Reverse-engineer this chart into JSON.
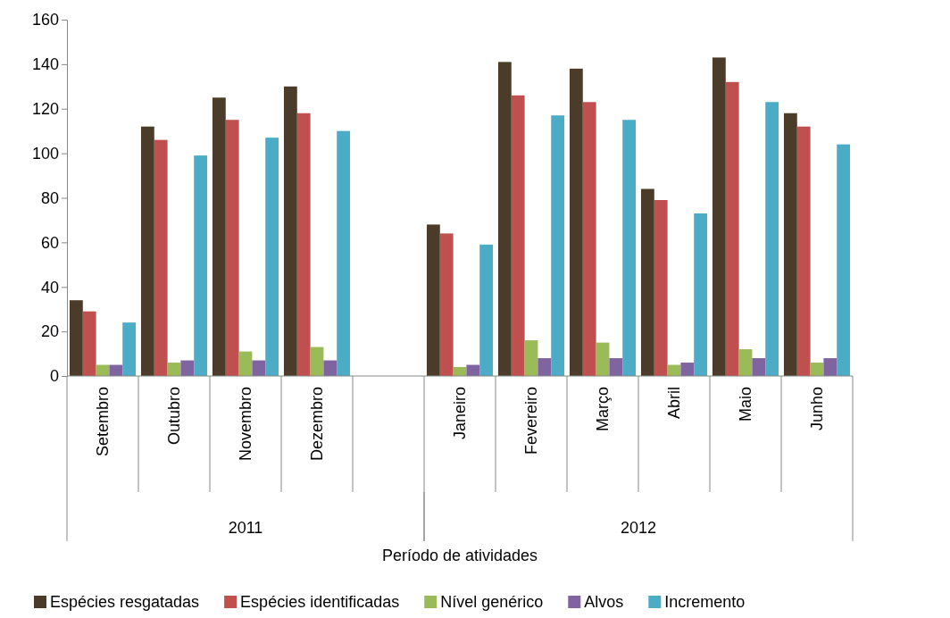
{
  "chart_data": {
    "type": "bar",
    "categories": [
      "Setembro",
      "Outubro",
      "Novembro",
      "Dezembro",
      null,
      "Janeiro",
      "Fevereiro",
      "Março",
      "Abril",
      "Maio",
      "Junho"
    ],
    "series": [
      {
        "name": "Espécies resgatadas",
        "color": "#4a3c28",
        "values": [
          34,
          112,
          125,
          130,
          null,
          68,
          141,
          138,
          84,
          143,
          118
        ]
      },
      {
        "name": "Espécies identificadas",
        "color": "#c0504d",
        "values": [
          29,
          106,
          115,
          118,
          null,
          64,
          126,
          123,
          79,
          132,
          112
        ]
      },
      {
        "name": "Nível genérico",
        "color": "#9bbb59",
        "values": [
          5,
          6,
          11,
          13,
          null,
          4,
          16,
          15,
          5,
          12,
          6
        ]
      },
      {
        "name": "Alvos",
        "color": "#8064a2",
        "values": [
          5,
          7,
          7,
          7,
          null,
          5,
          8,
          8,
          6,
          8,
          8
        ]
      },
      {
        "name": "Incremento",
        "color": "#4bacc6",
        "values": [
          24,
          99,
          107,
          110,
          null,
          59,
          117,
          115,
          73,
          123,
          104
        ]
      }
    ],
    "annotations": [
      "2011",
      "2012",
      "Período de atividades"
    ],
    "ylim": [
      0,
      160
    ],
    "yticks": [
      0,
      20,
      40,
      60,
      80,
      100,
      120,
      140,
      160
    ],
    "grid": false,
    "legend": "bottom"
  }
}
